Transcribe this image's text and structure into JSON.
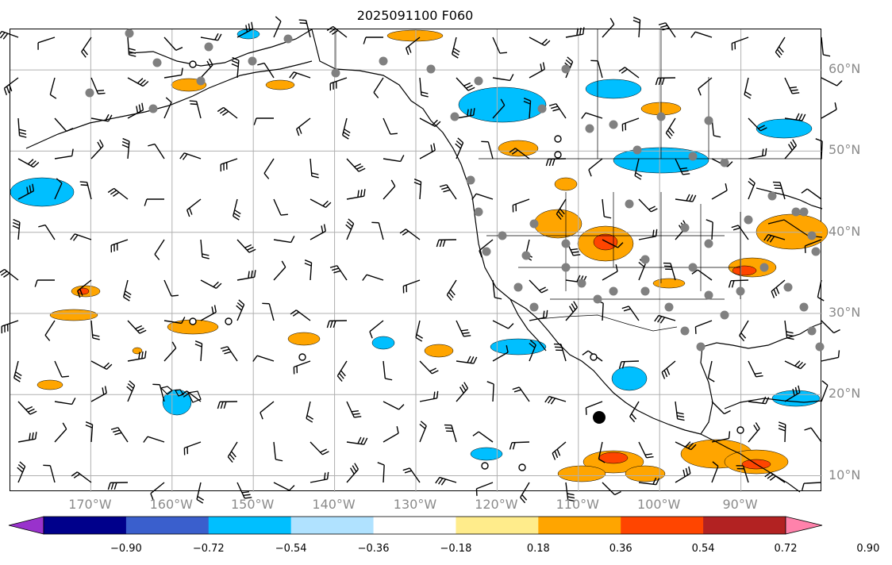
{
  "title": "2025091100 F060",
  "lat_labels": [
    {
      "deg": 60,
      "text": "60°N"
    },
    {
      "deg": 50,
      "text": "50°N"
    },
    {
      "deg": 40,
      "text": "40°N"
    },
    {
      "deg": 30,
      "text": "30°N"
    },
    {
      "deg": 20,
      "text": "20°N"
    },
    {
      "deg": 10,
      "text": "10°N"
    }
  ],
  "lon_labels": [
    {
      "deg": -170,
      "text": "170°W"
    },
    {
      "deg": -160,
      "text": "160°W"
    },
    {
      "deg": -150,
      "text": "150°W"
    },
    {
      "deg": -140,
      "text": "140°W"
    },
    {
      "deg": -130,
      "text": "130°W"
    },
    {
      "deg": -120,
      "text": "120°W"
    },
    {
      "deg": -110,
      "text": "110°W"
    },
    {
      "deg": -100,
      "text": "100°W"
    },
    {
      "deg": -90,
      "text": "90°W"
    }
  ],
  "map_extent": {
    "lon_min": -179.9,
    "lon_max": -80.0,
    "lat_min": 8.0,
    "lat_max": 65.0
  },
  "colorbar": {
    "ticks": [
      "−0.90",
      "−0.72",
      "−0.54",
      "−0.36",
      "−0.18",
      "0.18",
      "0.36",
      "0.54",
      "0.72",
      "0.90"
    ],
    "colors": [
      "#9932cc",
      "#00008b",
      "#3a5fcd",
      "#00bfff",
      "#b0e2ff",
      "#ffffff",
      "#ffec8b",
      "#ffa500",
      "#ff4500",
      "#b22222",
      "#ff82ab"
    ]
  },
  "field_colors": {
    "positive_light": "#ffa500",
    "positive_strong": "#ff4500",
    "negative": "#00bfff",
    "negative_light": "#b0e2ff"
  },
  "symbols": [
    "wind-barbs",
    "station-dots",
    "station-circles"
  ]
}
